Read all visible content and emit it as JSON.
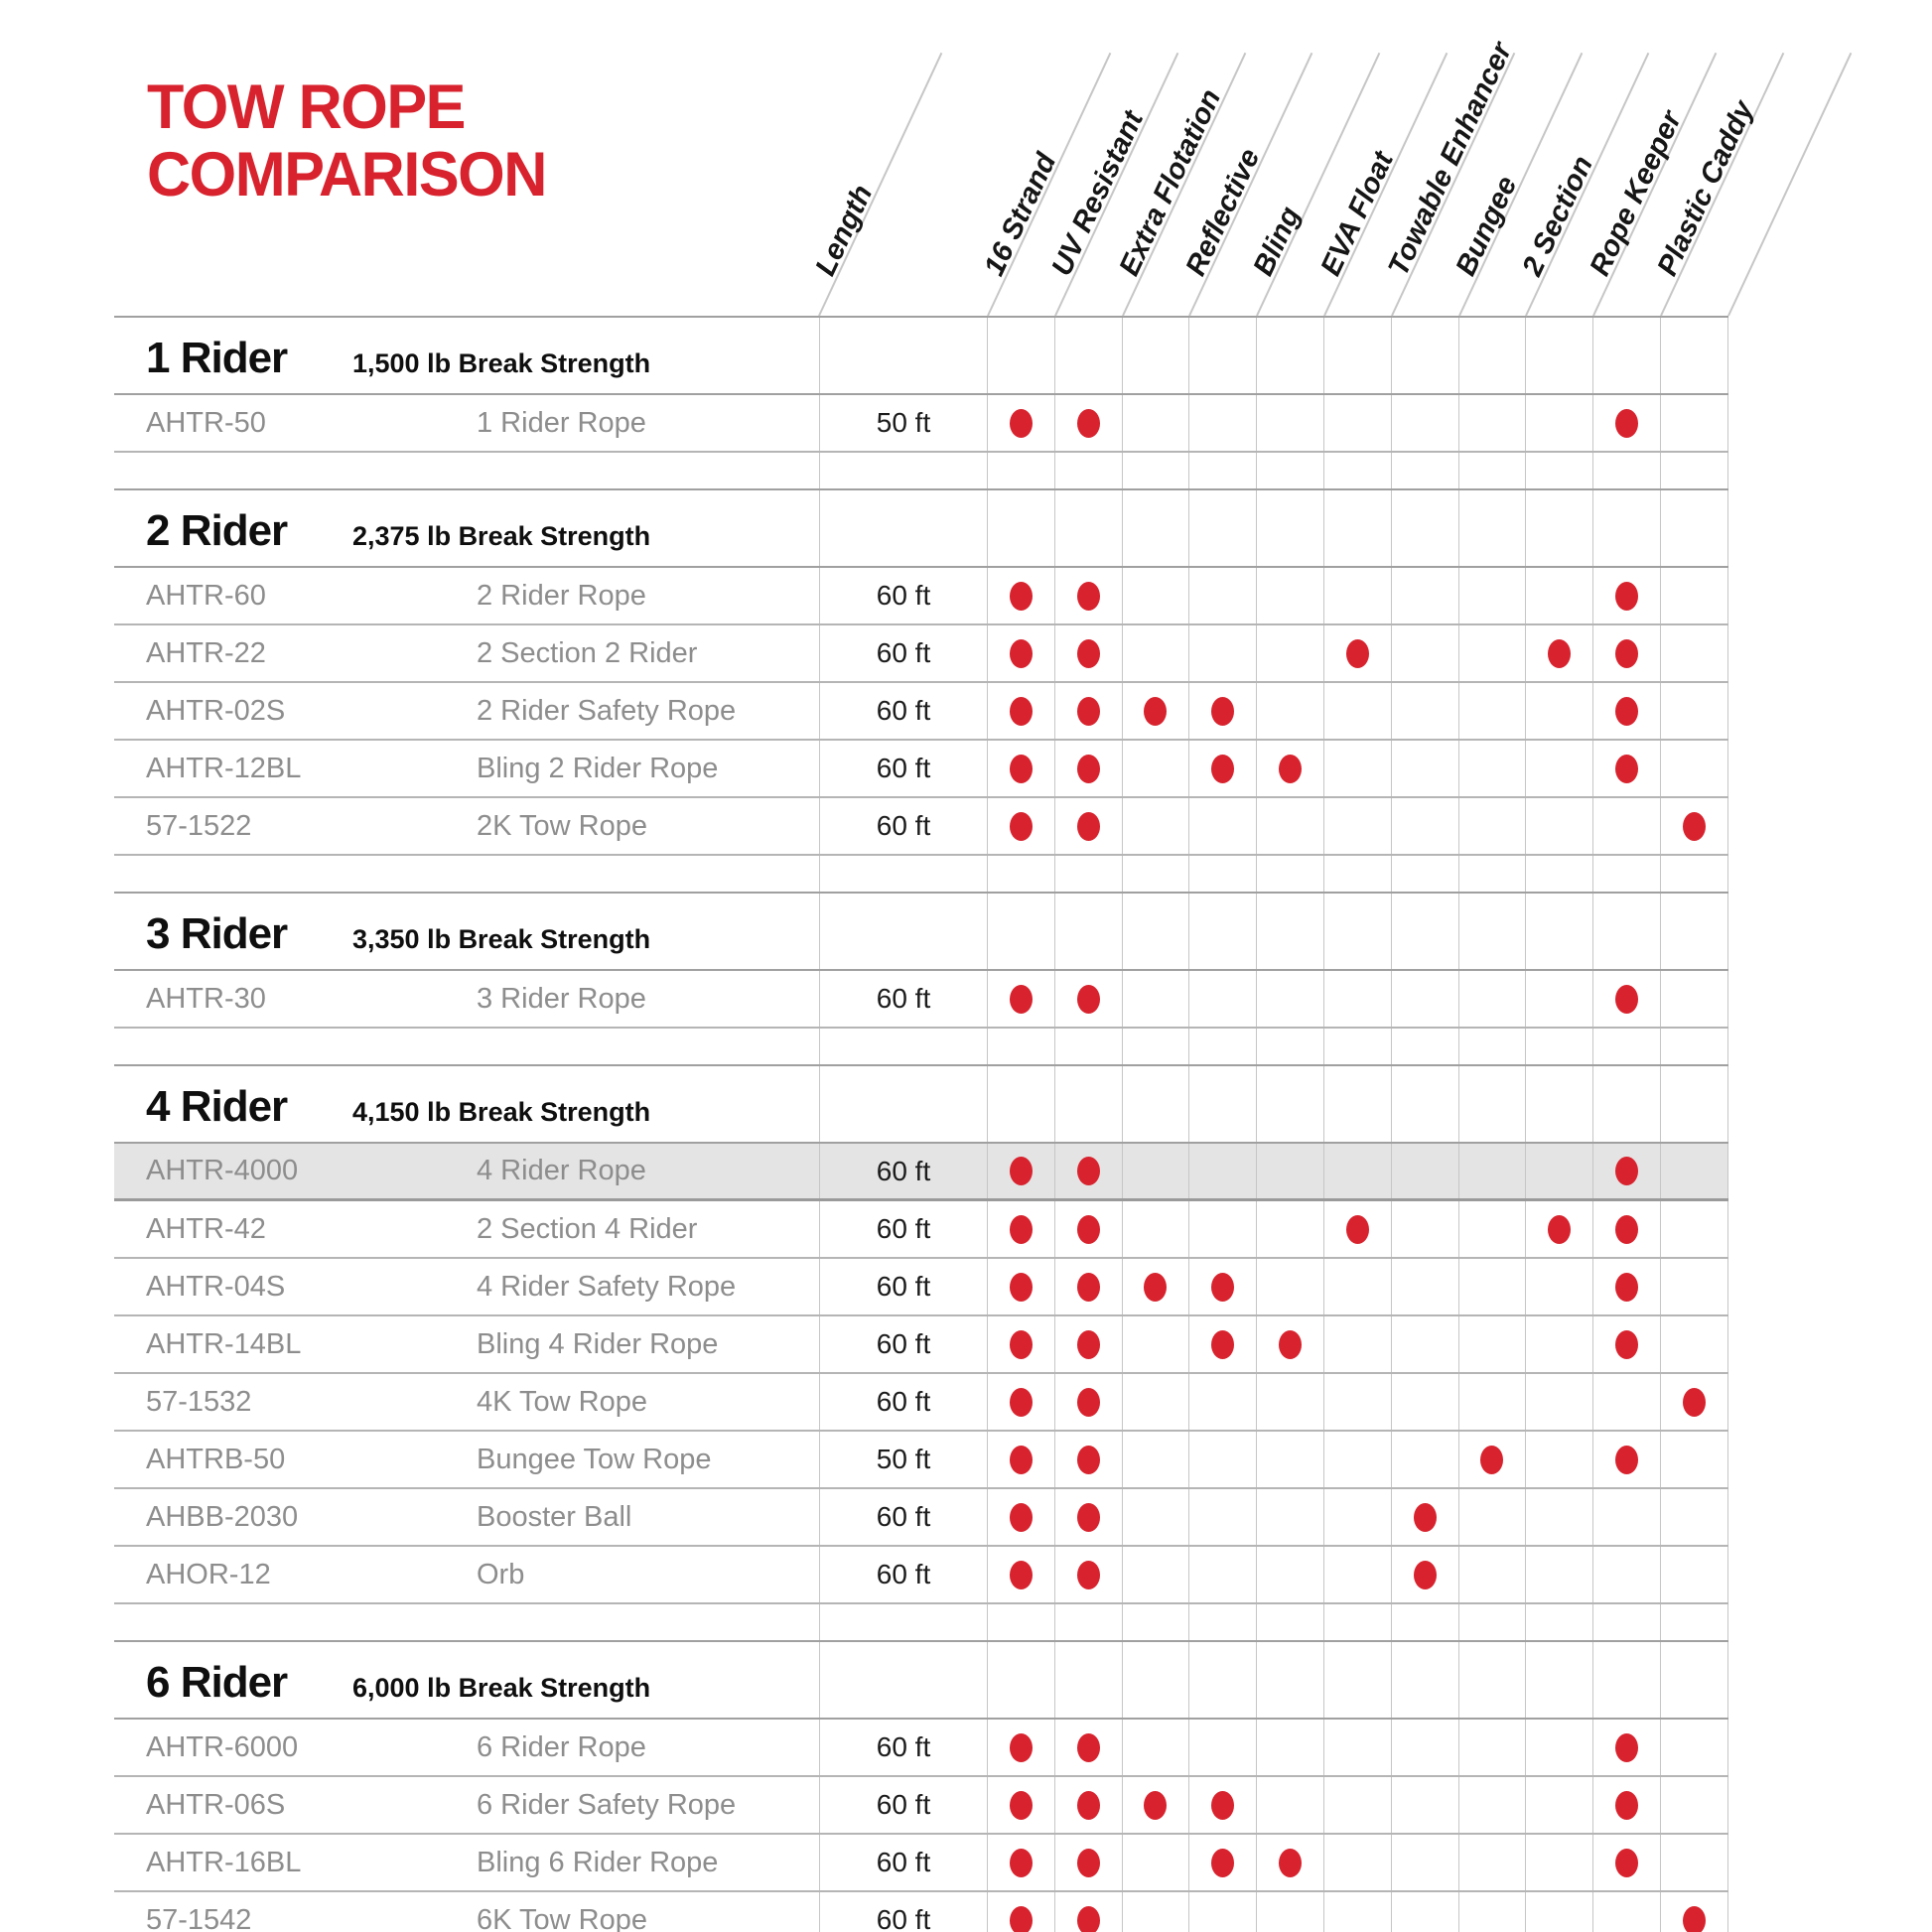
{
  "title": {
    "line1": "TOW ROPE",
    "line2": "COMPARISON"
  },
  "header": {
    "columns": [
      "Length",
      "16 Strand",
      "UV Resistant",
      "Extra Flotation",
      "Reflective",
      "Bling",
      "EVA Float",
      "Towable Enhancer",
      "Bungee",
      "2 Section",
      "Rope Keeper",
      "Plastic Caddy"
    ]
  },
  "sections": [
    {
      "title": "1 Rider",
      "strength": "1,500 lb Break Strength",
      "rows": [
        {
          "code": "AHTR-50",
          "name": "1 Rider Rope",
          "length": "50 ft",
          "highlighted": false,
          "features": [
            "16 Strand",
            "UV Resistant",
            "Rope Keeper"
          ]
        }
      ]
    },
    {
      "title": "2 Rider",
      "strength": "2,375 lb Break Strength",
      "rows": [
        {
          "code": "AHTR-60",
          "name": "2 Rider Rope",
          "length": "60 ft",
          "highlighted": false,
          "features": [
            "16 Strand",
            "UV Resistant",
            "Rope Keeper"
          ]
        },
        {
          "code": "AHTR-22",
          "name": "2 Section 2 Rider",
          "length": "60 ft",
          "highlighted": false,
          "features": [
            "16 Strand",
            "UV Resistant",
            "EVA Float",
            "2 Section",
            "Rope Keeper"
          ]
        },
        {
          "code": "AHTR-02S",
          "name": "2 Rider Safety Rope",
          "length": "60 ft",
          "highlighted": false,
          "features": [
            "16 Strand",
            "UV Resistant",
            "Extra Flotation",
            "Reflective",
            "Rope Keeper"
          ]
        },
        {
          "code": "AHTR-12BL",
          "name": "Bling 2 Rider Rope",
          "length": "60 ft",
          "highlighted": false,
          "features": [
            "16 Strand",
            "UV Resistant",
            "Reflective",
            "Bling",
            "Rope Keeper"
          ]
        },
        {
          "code": "57-1522",
          "name": "2K Tow Rope",
          "length": "60 ft",
          "highlighted": false,
          "features": [
            "16 Strand",
            "UV Resistant",
            "Plastic Caddy"
          ]
        }
      ]
    },
    {
      "title": "3 Rider",
      "strength": "3,350 lb Break Strength",
      "rows": [
        {
          "code": "AHTR-30",
          "name": "3 Rider Rope",
          "length": "60 ft",
          "highlighted": false,
          "features": [
            "16 Strand",
            "UV Resistant",
            "Rope Keeper"
          ]
        }
      ]
    },
    {
      "title": "4 Rider",
      "strength": "4,150 lb Break Strength",
      "rows": [
        {
          "code": "AHTR-4000",
          "name": "4 Rider Rope",
          "length": "60 ft",
          "highlighted": true,
          "features": [
            "16 Strand",
            "UV Resistant",
            "Rope Keeper"
          ]
        },
        {
          "code": "AHTR-42",
          "name": "2 Section 4 Rider",
          "length": "60 ft",
          "highlighted": false,
          "features": [
            "16 Strand",
            "UV Resistant",
            "EVA Float",
            "2 Section",
            "Rope Keeper"
          ]
        },
        {
          "code": "AHTR-04S",
          "name": "4 Rider Safety Rope",
          "length": "60 ft",
          "highlighted": false,
          "features": [
            "16 Strand",
            "UV Resistant",
            "Extra Flotation",
            "Reflective",
            "Rope Keeper"
          ]
        },
        {
          "code": "AHTR-14BL",
          "name": "Bling 4 Rider Rope",
          "length": "60 ft",
          "highlighted": false,
          "features": [
            "16 Strand",
            "UV Resistant",
            "Reflective",
            "Bling",
            "Rope Keeper"
          ]
        },
        {
          "code": "57-1532",
          "name": "4K Tow Rope",
          "length": "60 ft",
          "highlighted": false,
          "features": [
            "16 Strand",
            "UV Resistant",
            "Plastic Caddy"
          ]
        },
        {
          "code": "AHTRB-50",
          "name": "Bungee Tow Rope",
          "length": "50 ft",
          "highlighted": false,
          "features": [
            "16 Strand",
            "UV Resistant",
            "Bungee",
            "Rope Keeper"
          ]
        },
        {
          "code": "AHBB-2030",
          "name": "Booster Ball",
          "length": "60 ft",
          "highlighted": false,
          "features": [
            "16 Strand",
            "UV Resistant",
            "Towable Enhancer"
          ]
        },
        {
          "code": "AHOR-12",
          "name": "Orb",
          "length": "60 ft",
          "highlighted": false,
          "features": [
            "16 Strand",
            "UV Resistant",
            "Towable Enhancer"
          ]
        }
      ]
    },
    {
      "title": "6 Rider",
      "strength": "6,000 lb Break Strength",
      "rows": [
        {
          "code": "AHTR-6000",
          "name": "6 Rider Rope",
          "length": "60 ft",
          "highlighted": false,
          "features": [
            "16 Strand",
            "UV Resistant",
            "Rope Keeper"
          ]
        },
        {
          "code": "AHTR-06S",
          "name": "6 Rider Safety Rope",
          "length": "60 ft",
          "highlighted": false,
          "features": [
            "16 Strand",
            "UV Resistant",
            "Extra Flotation",
            "Reflective",
            "Rope Keeper"
          ]
        },
        {
          "code": "AHTR-16BL",
          "name": "Bling 6 Rider Rope",
          "length": "60 ft",
          "highlighted": false,
          "features": [
            "16 Strand",
            "UV Resistant",
            "Reflective",
            "Bling",
            "Rope Keeper"
          ]
        },
        {
          "code": "57-1542",
          "name": "6K Tow Rope",
          "length": "60 ft",
          "highlighted": false,
          "features": [
            "16 Strand",
            "UV Resistant",
            "Plastic Caddy"
          ]
        }
      ]
    }
  ],
  "colors": {
    "accent_red": "#D8232E",
    "dot_red": "#D8232E",
    "row_highlight": "#E4E4E4",
    "grid_line": "#C6C6C6",
    "row_line": "#B5B5B5",
    "band_line": "#A0A0A0",
    "text_gray": "#8D8D8D"
  }
}
